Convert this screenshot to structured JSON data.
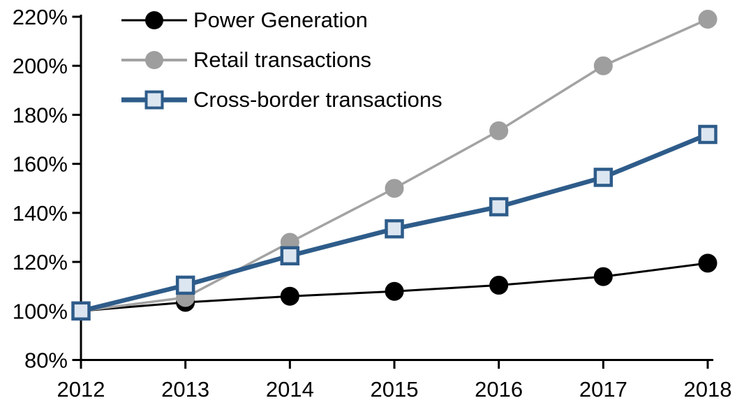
{
  "chart_data": {
    "type": "line",
    "title": "",
    "categories": [
      "2012",
      "2013",
      "2014",
      "2015",
      "2016",
      "2017",
      "2018"
    ],
    "xlabel": "",
    "ylabel": "",
    "ylim": [
      80,
      220
    ],
    "y_tick_step": 20,
    "y_tick_labels": [
      "80%",
      "100%",
      "120%",
      "140%",
      "160%",
      "180%",
      "200%",
      "220%"
    ],
    "y_unit": "%",
    "grid": false,
    "legend_position": "top-left-inside",
    "series": [
      {
        "name": "Power Generation",
        "values": [
          100,
          103.5,
          106,
          108,
          110.5,
          114,
          119.5
        ],
        "line_color": "#000000",
        "line_width": 3,
        "marker": "circle",
        "marker_fill": "#000000",
        "marker_stroke": "#000000"
      },
      {
        "name": "Retail transactions",
        "values": [
          100,
          105.5,
          128,
          150,
          173.5,
          200,
          219
        ],
        "line_color": "#A3A3A3",
        "line_width": 3.5,
        "marker": "circle",
        "marker_fill": "#9E9E9E",
        "marker_stroke": "#9E9E9E"
      },
      {
        "name": "Cross-border transactions",
        "values": [
          100,
          110.5,
          122.5,
          133.5,
          142.5,
          154.5,
          172
        ],
        "line_color": "#2E5C8A",
        "line_width": 6.5,
        "marker": "square",
        "marker_fill": "#DCE6F1",
        "marker_stroke": "#2E5C8A"
      }
    ],
    "axis_color": "#000000"
  }
}
